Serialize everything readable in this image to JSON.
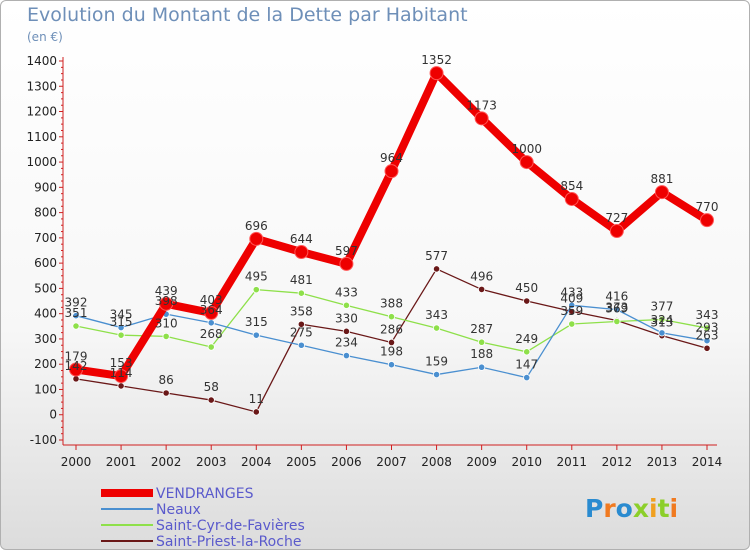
{
  "header": {
    "title": "Evolution du Montant de la Dette par Habitant",
    "unit": "(en €)"
  },
  "branding": {
    "logo_text": "Proxiti"
  },
  "chart_data": {
    "type": "line",
    "title": "Evolution du Montant de la Dette par Habitant",
    "ylabel": "(en €)",
    "xlabel": "",
    "ylim": [
      -100,
      1400
    ],
    "yticks": [
      -100,
      0,
      100,
      200,
      300,
      400,
      500,
      600,
      700,
      800,
      900,
      1000,
      1100,
      1200,
      1300,
      1400
    ],
    "grid": false,
    "legend_position": "bottom-left",
    "categories": [
      "2000",
      "2001",
      "2002",
      "2003",
      "2004",
      "2005",
      "2006",
      "2007",
      "2008",
      "2009",
      "2010",
      "2011",
      "2012",
      "2013",
      "2014"
    ],
    "series": [
      {
        "name": "VENDRANGES",
        "color": "#ee0000",
        "values": [
          179,
          153,
          439,
          403,
          696,
          644,
          597,
          964,
          1352,
          1173,
          1000,
          854,
          727,
          881,
          770
        ]
      },
      {
        "name": "Neaux",
        "color": "#4a8fd0",
        "values": [
          392,
          345,
          398,
          364,
          315,
          275,
          234,
          198,
          159,
          188,
          147,
          433,
          416,
          324,
          293
        ]
      },
      {
        "name": "Saint-Cyr-de-Favières",
        "color": "#8ee04a",
        "values": [
          351,
          315,
          310,
          268,
          495,
          481,
          433,
          388,
          343,
          287,
          249,
          359,
          369,
          377,
          343
        ]
      },
      {
        "name": "Saint-Priest-la-Roche",
        "color": "#6a1818",
        "values": [
          142,
          114,
          86,
          58,
          11,
          358,
          330,
          286,
          577,
          496,
          450,
          409,
          373,
          313,
          263
        ]
      }
    ]
  }
}
